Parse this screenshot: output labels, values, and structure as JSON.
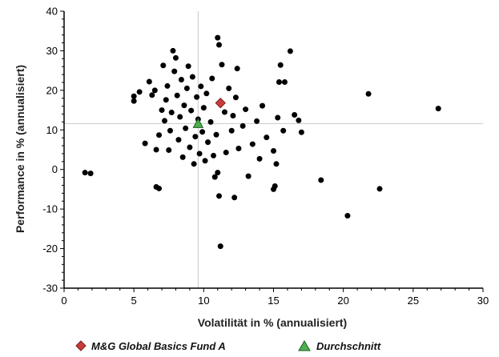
{
  "chart_data": {
    "type": "scatter",
    "xlabel": "Volatilität in % (annualisiert)",
    "ylabel": "Performance in % (annualisiert)",
    "xlim": [
      0,
      30
    ],
    "ylim": [
      -30,
      40
    ],
    "x_ticks": [
      0,
      5,
      10,
      15,
      20,
      25,
      30
    ],
    "y_ticks": [
      -30,
      -20,
      -10,
      0,
      10,
      20,
      30,
      40
    ],
    "grid": false,
    "reference_lines": {
      "x": 9.6,
      "y": 11.6
    },
    "legend_position": "bottom",
    "series": [
      {
        "name": "M&G Global Basics Fund A",
        "marker": "diamond",
        "color": "#c83c3c",
        "points": [
          [
            11.2,
            16.8
          ]
        ]
      },
      {
        "name": "Durchschnitt",
        "marker": "triangle",
        "color": "#4caf50",
        "points": [
          [
            9.6,
            11.6
          ]
        ]
      },
      {
        "name": "",
        "marker": "circle",
        "color": "#000000",
        "points": [
          [
            1.5,
            -0.8
          ],
          [
            1.9,
            -1.0
          ],
          [
            5.0,
            18.5
          ],
          [
            5.0,
            17.3
          ],
          [
            5.4,
            19.6
          ],
          [
            5.8,
            6.6
          ],
          [
            6.1,
            22.2
          ],
          [
            6.3,
            18.8
          ],
          [
            6.5,
            20.0
          ],
          [
            6.6,
            5.0
          ],
          [
            6.6,
            -4.4
          ],
          [
            6.8,
            -4.8
          ],
          [
            6.8,
            8.7
          ],
          [
            7.0,
            15.0
          ],
          [
            7.1,
            26.3
          ],
          [
            7.2,
            12.3
          ],
          [
            7.3,
            17.6
          ],
          [
            7.4,
            21.1
          ],
          [
            7.5,
            4.9
          ],
          [
            7.6,
            9.8
          ],
          [
            7.7,
            14.4
          ],
          [
            7.8,
            30.0
          ],
          [
            7.9,
            24.8
          ],
          [
            8.0,
            28.2
          ],
          [
            8.1,
            18.7
          ],
          [
            8.2,
            7.5
          ],
          [
            8.3,
            13.3
          ],
          [
            8.4,
            22.7
          ],
          [
            8.5,
            3.1
          ],
          [
            8.6,
            16.2
          ],
          [
            8.7,
            10.4
          ],
          [
            8.8,
            20.5
          ],
          [
            8.9,
            26.1
          ],
          [
            9.0,
            5.6
          ],
          [
            9.1,
            14.9
          ],
          [
            9.2,
            23.4
          ],
          [
            9.3,
            1.4
          ],
          [
            9.4,
            8.3
          ],
          [
            9.5,
            18.3
          ],
          [
            9.6,
            12.7
          ],
          [
            9.7,
            4.0
          ],
          [
            9.8,
            21.0
          ],
          [
            9.9,
            9.5
          ],
          [
            10.0,
            15.6
          ],
          [
            10.1,
            2.2
          ],
          [
            10.2,
            19.2
          ],
          [
            10.3,
            6.9
          ],
          [
            10.5,
            12.0
          ],
          [
            10.6,
            23.0
          ],
          [
            10.7,
            3.5
          ],
          [
            10.8,
            -1.9
          ],
          [
            10.9,
            8.8
          ],
          [
            11.0,
            -0.8
          ],
          [
            11.0,
            33.3
          ],
          [
            11.1,
            31.5
          ],
          [
            11.1,
            -6.7
          ],
          [
            11.2,
            -19.4
          ],
          [
            11.3,
            26.5
          ],
          [
            11.5,
            14.5
          ],
          [
            11.6,
            4.3
          ],
          [
            11.8,
            20.5
          ],
          [
            12.0,
            9.8
          ],
          [
            12.1,
            13.6
          ],
          [
            12.2,
            -7.1
          ],
          [
            12.3,
            18.2
          ],
          [
            12.4,
            25.5
          ],
          [
            12.5,
            5.3
          ],
          [
            12.8,
            11.0
          ],
          [
            13.0,
            15.2
          ],
          [
            13.2,
            -1.7
          ],
          [
            13.5,
            6.4
          ],
          [
            13.8,
            12.2
          ],
          [
            14.0,
            2.7
          ],
          [
            14.2,
            16.1
          ],
          [
            14.5,
            8.1
          ],
          [
            15.0,
            4.7
          ],
          [
            15.0,
            -5.0
          ],
          [
            15.1,
            -4.2
          ],
          [
            15.2,
            1.4
          ],
          [
            15.3,
            13.1
          ],
          [
            15.4,
            22.1
          ],
          [
            15.5,
            26.4
          ],
          [
            15.7,
            9.8
          ],
          [
            15.8,
            22.1
          ],
          [
            16.2,
            29.9
          ],
          [
            16.5,
            13.8
          ],
          [
            16.8,
            12.4
          ],
          [
            17.0,
            9.4
          ],
          [
            18.4,
            -2.7
          ],
          [
            20.3,
            -11.7
          ],
          [
            21.8,
            19.1
          ],
          [
            22.6,
            -4.9
          ],
          [
            26.8,
            15.4
          ]
        ]
      }
    ]
  }
}
